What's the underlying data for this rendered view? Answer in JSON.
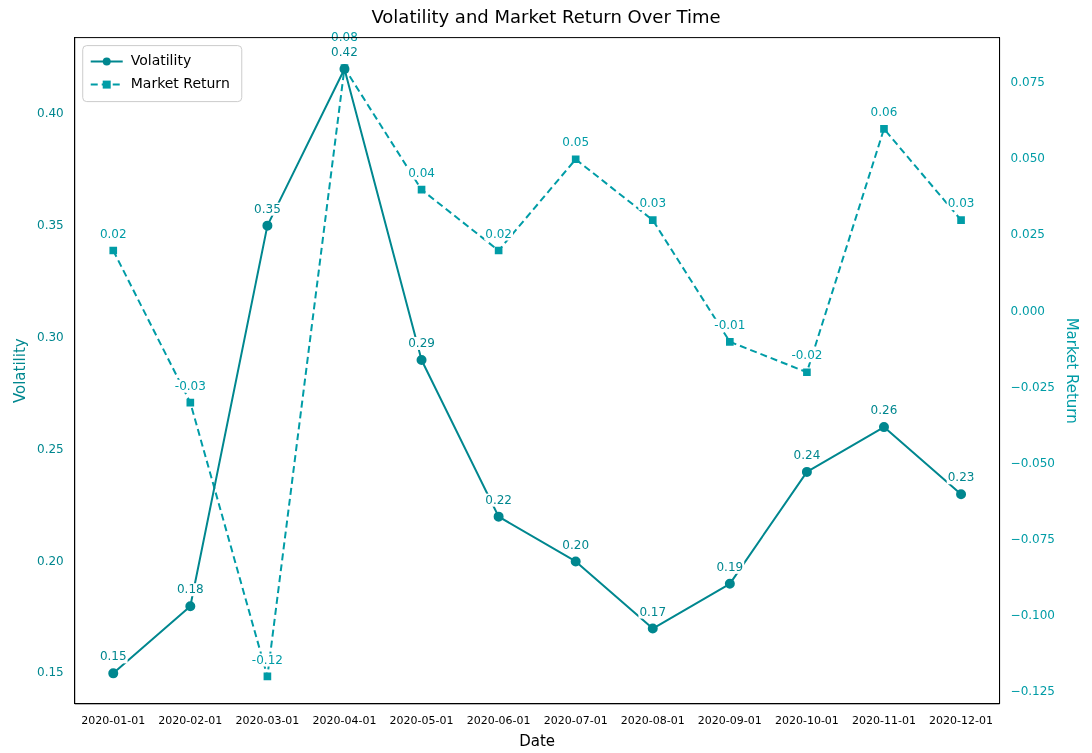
{
  "chart_data": {
    "type": "line",
    "title": "Volatility and Market Return Over Time",
    "xlabel": "Date",
    "ylabel": "Volatility",
    "y2label": "Market Return",
    "categories": [
      "2020-01-01",
      "2020-02-01",
      "2020-03-01",
      "2020-04-01",
      "2020-05-01",
      "2020-06-01",
      "2020-07-01",
      "2020-08-01",
      "2020-09-01",
      "2020-10-01",
      "2020-11-01",
      "2020-12-01"
    ],
    "series": [
      {
        "name": "Volatility",
        "color": "#00878f",
        "marker": "circle",
        "line_style": "solid",
        "values": [
          0.15,
          0.18,
          0.35,
          0.42,
          0.29,
          0.22,
          0.2,
          0.17,
          0.19,
          0.24,
          0.26,
          0.23
        ],
        "value_labels": [
          "0.15",
          "0.18",
          "0.35",
          "0.42",
          "0.29",
          "0.22",
          "0.20",
          "0.17",
          "0.19",
          "0.24",
          "0.26",
          "0.23"
        ]
      },
      {
        "name": "Market Return",
        "color": "#009ca6",
        "marker": "square",
        "line_style": "dashed",
        "axis": "y2",
        "values": [
          0.02,
          -0.03,
          -0.12,
          0.08,
          0.04,
          0.02,
          0.05,
          0.03,
          -0.01,
          -0.02,
          0.06,
          0.03
        ],
        "value_labels": [
          "0.02",
          "-0.03",
          "-0.12",
          "0.08",
          "0.04",
          "0.02",
          "0.05",
          "0.03",
          "-0.01",
          "-0.02",
          "0.06",
          "0.03"
        ]
      }
    ],
    "ylim": [
      0.1364,
      0.434
    ],
    "yticks": [
      {
        "value": 0.15,
        "label": "0.15"
      },
      {
        "value": 0.2,
        "label": "0.20"
      },
      {
        "value": 0.25,
        "label": "0.25"
      },
      {
        "value": 0.3,
        "label": "0.30"
      },
      {
        "value": 0.35,
        "label": "0.35"
      },
      {
        "value": 0.4,
        "label": "0.40"
      }
    ],
    "y2lim": [
      -0.129,
      0.09
    ],
    "y2ticks": [
      {
        "value": -0.125,
        "label": "−0.125"
      },
      {
        "value": -0.1,
        "label": "−0.100"
      },
      {
        "value": -0.075,
        "label": "−0.075"
      },
      {
        "value": -0.05,
        "label": "−0.050"
      },
      {
        "value": -0.025,
        "label": "−0.025"
      },
      {
        "value": 0,
        "label": "0.000"
      },
      {
        "value": 0.025,
        "label": "0.025"
      },
      {
        "value": 0.05,
        "label": "0.050"
      },
      {
        "value": 0.075,
        "label": "0.075"
      }
    ],
    "legend": "top left",
    "grid": false
  }
}
